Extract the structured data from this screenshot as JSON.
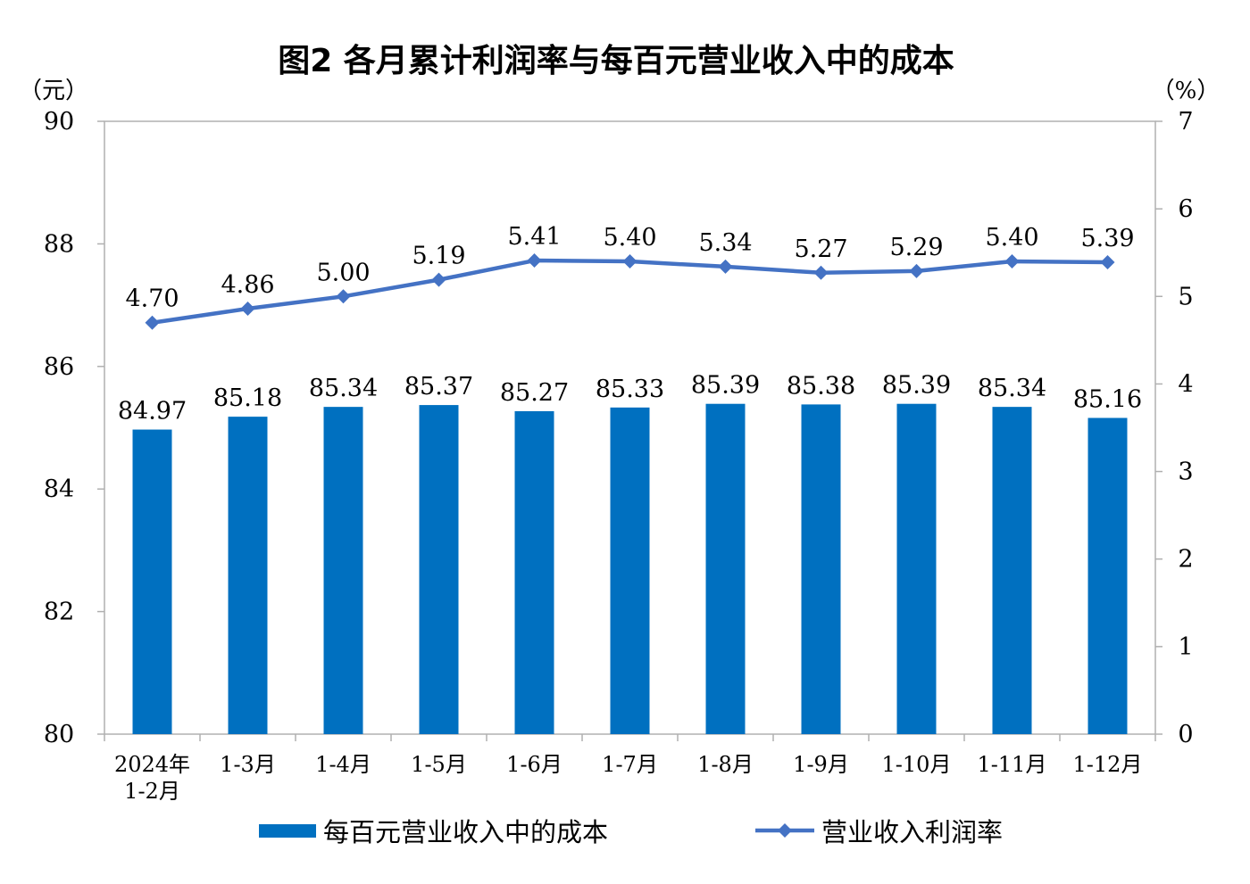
{
  "chart_data": {
    "type": "bar",
    "title": "图2  各月累计利润率与每百元营业收入中的成本",
    "y_left_unit": "（元）",
    "y_right_unit": "（%）",
    "y_left_lim": [
      80,
      90
    ],
    "y_left_ticks": [
      "80",
      "82",
      "84",
      "86",
      "88",
      "90"
    ],
    "y_right_lim": [
      0,
      7
    ],
    "y_right_ticks": [
      "0",
      "1",
      "2",
      "3",
      "4",
      "5",
      "6",
      "7"
    ],
    "categories": [
      [
        "2024年",
        "1-2月"
      ],
      [
        "1-3月"
      ],
      [
        "1-4月"
      ],
      [
        "1-5月"
      ],
      [
        "1-6月"
      ],
      [
        "1-7月"
      ],
      [
        "1-8月"
      ],
      [
        "1-9月"
      ],
      [
        "1-10月"
      ],
      [
        "1-11月"
      ],
      [
        "1-12月"
      ]
    ],
    "series": [
      {
        "name": "每百元营业收入中的成本",
        "type": "bar",
        "axis": "left",
        "color": "#0070c0",
        "values": [
          84.97,
          85.18,
          85.34,
          85.37,
          85.27,
          85.33,
          85.39,
          85.38,
          85.39,
          85.34,
          85.16
        ],
        "labels": [
          "84.97",
          "85.18",
          "85.34",
          "85.37",
          "85.27",
          "85.33",
          "85.39",
          "85.38",
          "85.39",
          "85.34",
          "85.16"
        ]
      },
      {
        "name": "营业收入利润率",
        "type": "line",
        "axis": "right",
        "color": "#4472c4",
        "values": [
          4.7,
          4.86,
          5.0,
          5.19,
          5.41,
          5.4,
          5.34,
          5.27,
          5.29,
          5.4,
          5.39
        ],
        "labels": [
          "4.70",
          "4.86",
          "5.00",
          "5.19",
          "5.41",
          "5.40",
          "5.34",
          "5.27",
          "5.29",
          "5.40",
          "5.39"
        ]
      }
    ],
    "legend": "bottom",
    "grid": false
  }
}
